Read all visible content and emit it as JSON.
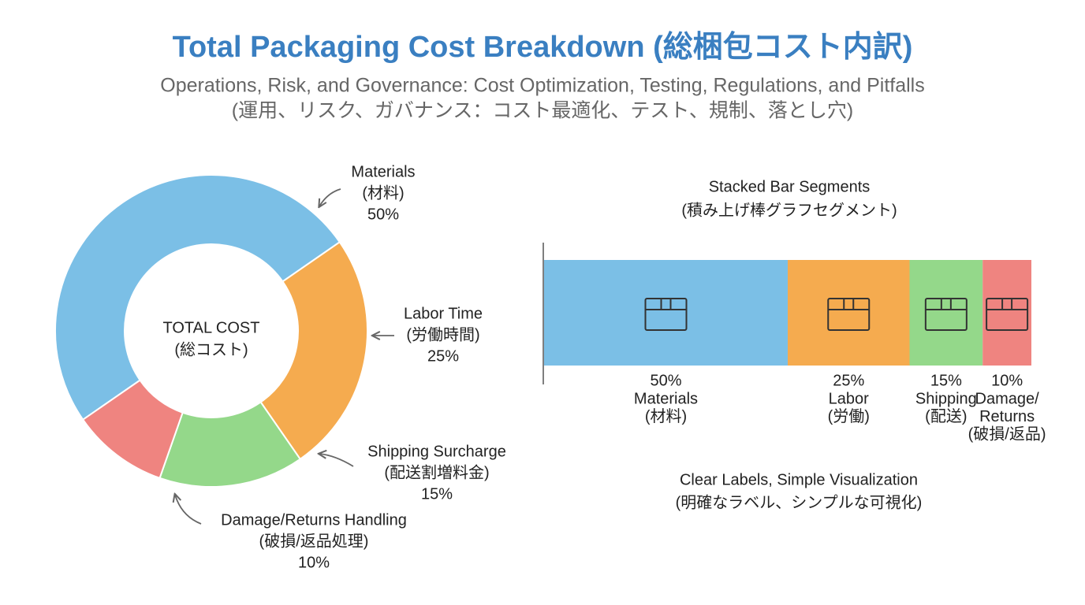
{
  "title": "Total Packaging Cost Breakdown (総梱包コスト内訳)",
  "subtitle": [
    "Operations, Risk, and Governance: Cost Optimization, Testing, Regulations, and Pitfalls",
    "(運用、リスク、ガバナンス：コスト最適化、テスト、規制、落とし穴)"
  ],
  "chart_data": [
    {
      "type": "donut",
      "center_label": [
        "TOTAL COST",
        "(総コスト)"
      ],
      "categories": [
        [
          "Materials",
          "(材料)"
        ],
        [
          "Labor Time",
          "(労働時間)"
        ],
        [
          "Shipping Surcharge",
          "(配送割増料金)"
        ],
        [
          "Damage/Returns Handling",
          "(破損/返品処理)"
        ]
      ],
      "values": [
        50,
        25,
        15,
        10
      ],
      "value_labels": [
        "50%",
        "25%",
        "15%",
        "10%"
      ],
      "colors": [
        "#7bbfe6",
        "#f5ab4f",
        "#94d88a",
        "#ef8480"
      ]
    },
    {
      "type": "stacked_bar",
      "title": [
        "Stacked Bar Segments",
        "(積み上げ棒グラフセグメント)"
      ],
      "categories": [
        [
          "Materials",
          "(材料)"
        ],
        [
          "Labor",
          "(労働)"
        ],
        [
          "Shipping",
          "(配送)"
        ],
        [
          "Damage/",
          "Returns",
          "(破損/返品)"
        ]
      ],
      "values": [
        50,
        25,
        15,
        10
      ],
      "value_labels": [
        "50%",
        "25%",
        "15%",
        "10%"
      ],
      "colors": [
        "#7bbfe6",
        "#f5ab4f",
        "#94d88a",
        "#ef8480"
      ],
      "footer": [
        "Clear Labels, Simple Visualization",
        "(明確なラベル、シンプルな可視化)"
      ]
    }
  ]
}
